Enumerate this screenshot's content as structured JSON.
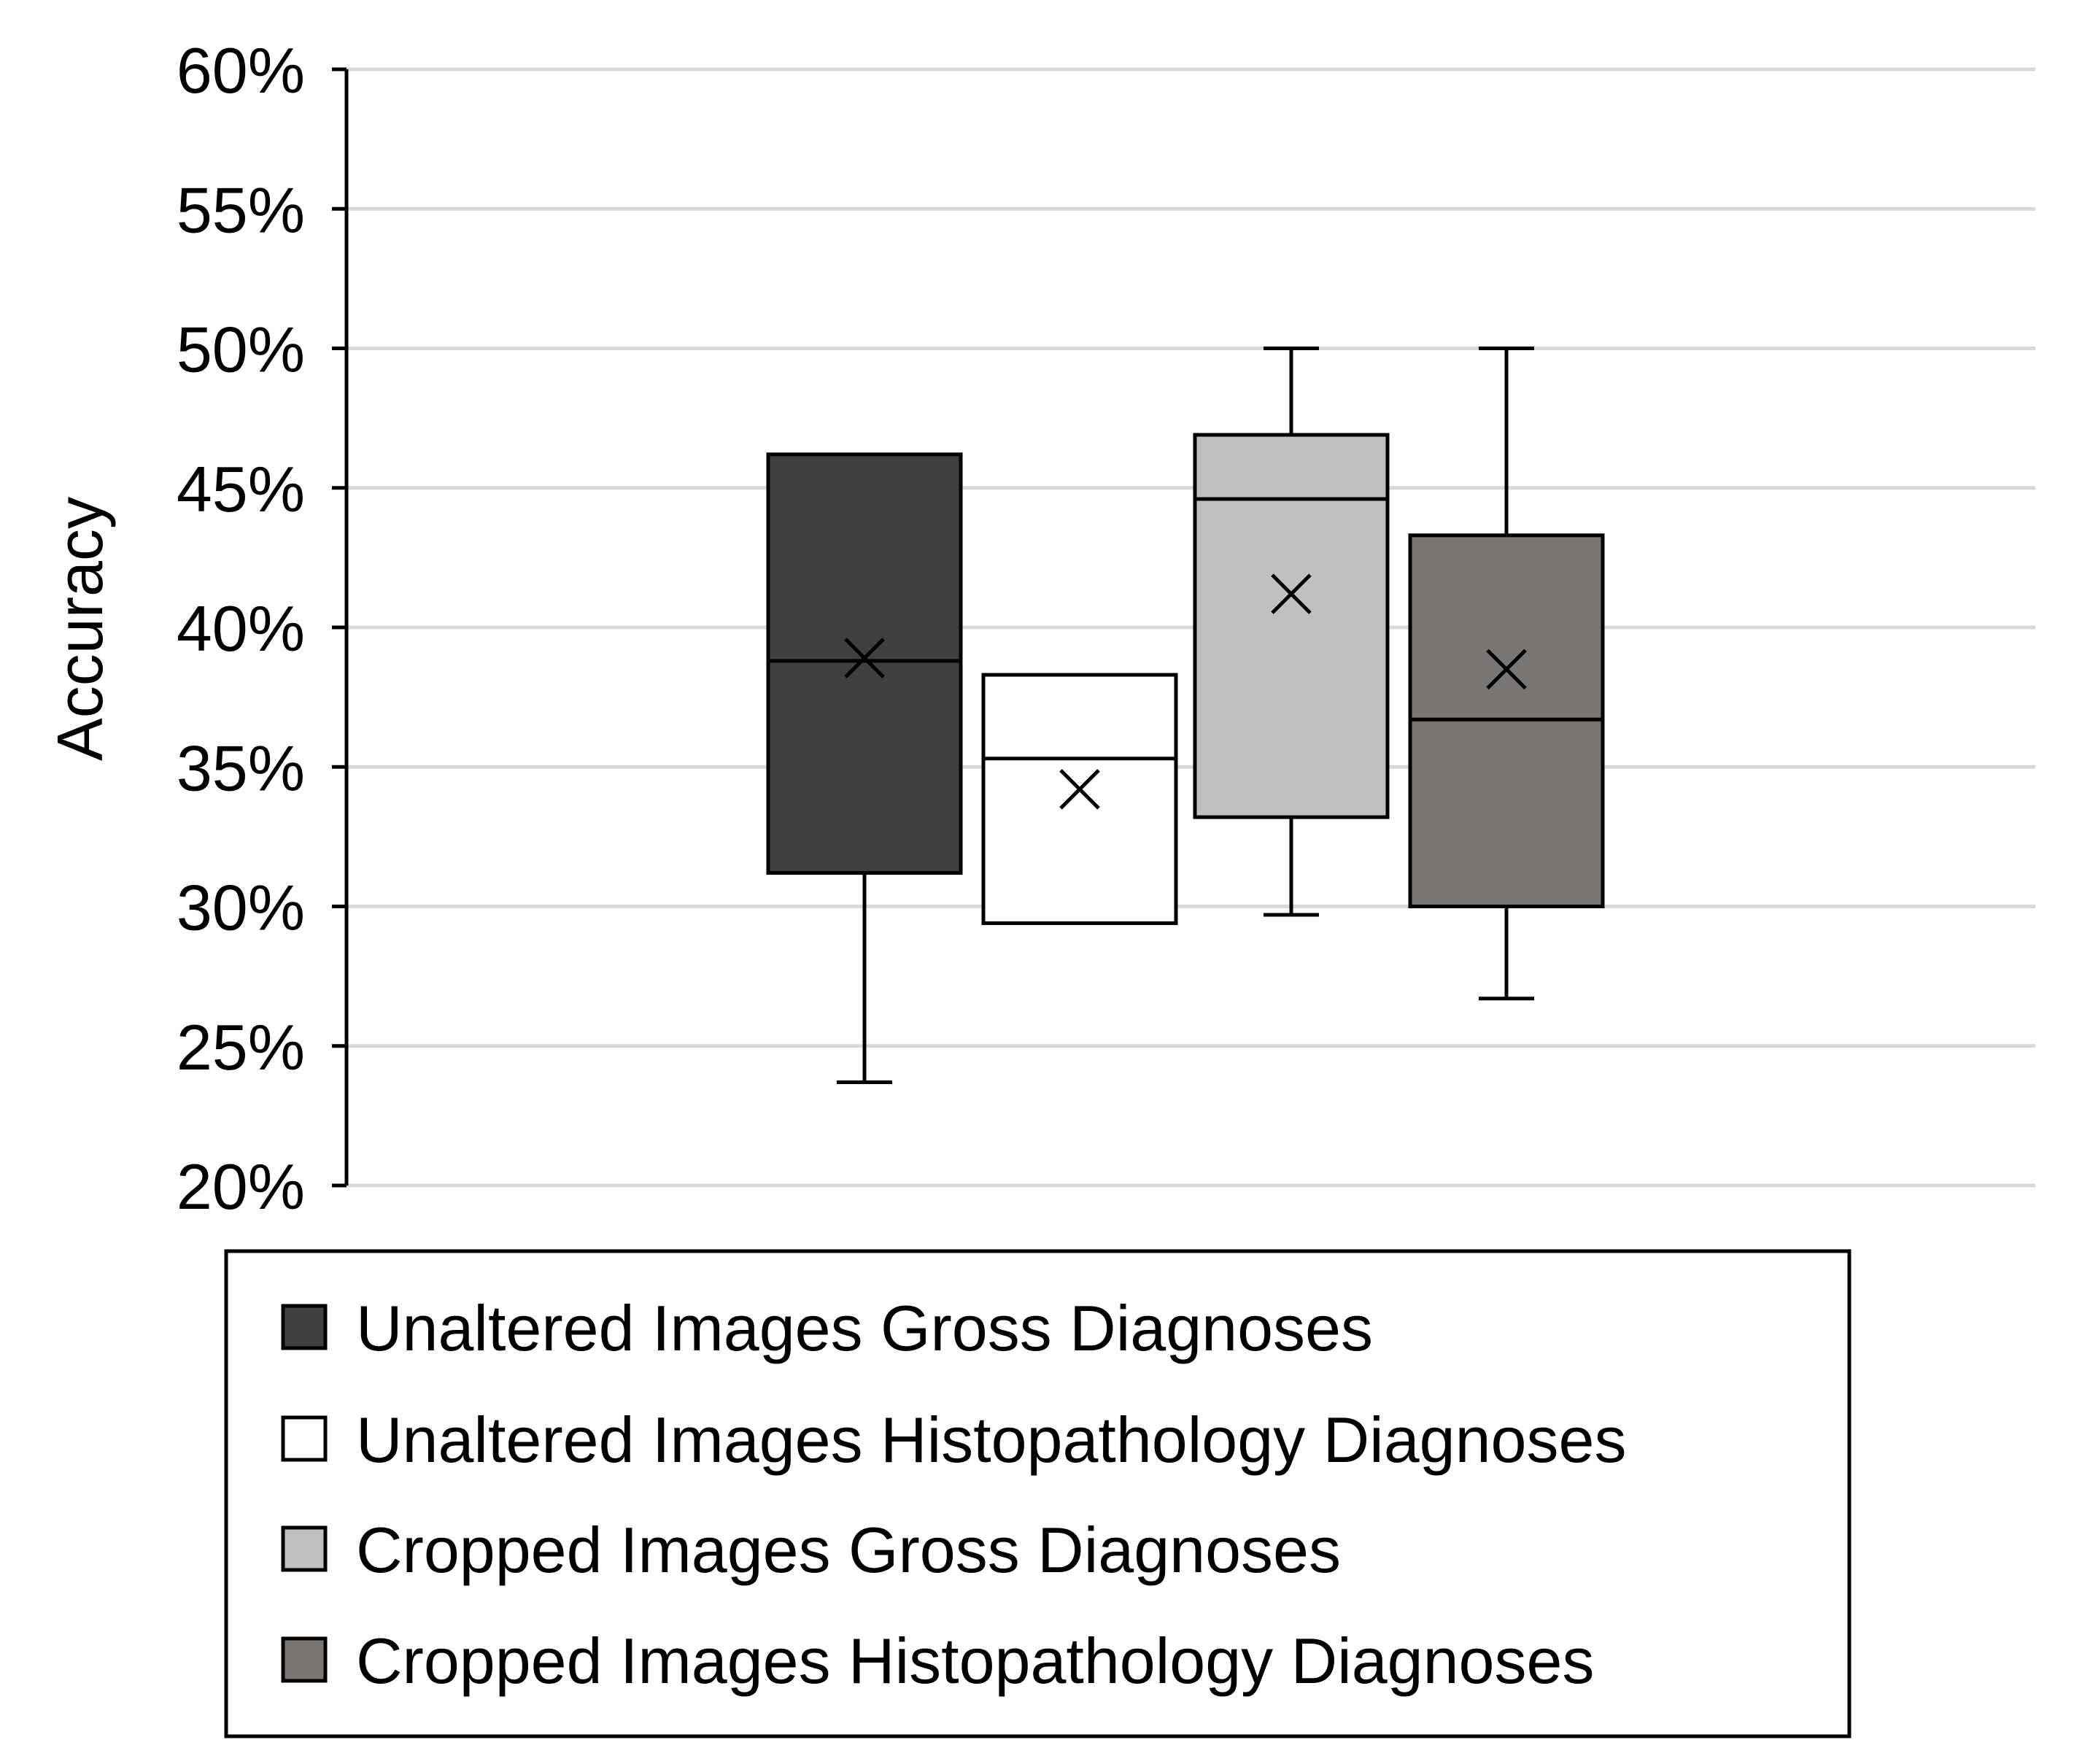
{
  "chart_data": {
    "type": "box",
    "title": "",
    "xlabel": "",
    "ylabel": "Accuracy",
    "ylim": [
      20,
      60
    ],
    "yticks": [
      20,
      25,
      30,
      35,
      40,
      45,
      50,
      55,
      60
    ],
    "ytick_labels": [
      "20%",
      "25%",
      "30%",
      "35%",
      "40%",
      "45%",
      "50%",
      "55%",
      "60%"
    ],
    "grid": true,
    "legend_position": "bottom",
    "series": [
      {
        "name": "Unaltered Images Gross Diagnoses",
        "color": "#404040",
        "whisker_low": 23.7,
        "q1": 31.2,
        "median": 38.8,
        "q3": 46.2,
        "whisker_high": 46.2,
        "mean": 38.9
      },
      {
        "name": "Unaltered Images Histopathology Diagnoses",
        "color": "#ffffff",
        "whisker_low": 29.4,
        "q1": 29.4,
        "median": 35.3,
        "q3": 38.3,
        "whisker_high": 38.3,
        "mean": 34.2
      },
      {
        "name": "Cropped Images Gross Diagnoses",
        "color": "#c0c0c0",
        "whisker_low": 29.7,
        "q1": 33.2,
        "median": 44.6,
        "q3": 46.9,
        "whisker_high": 50,
        "mean": 41.2
      },
      {
        "name": "Cropped Images Histopathology Diagnoses",
        "color": "#7a7573",
        "whisker_low": 26.7,
        "q1": 30,
        "median": 36.7,
        "q3": 43.3,
        "whisker_high": 50,
        "mean": 38.5
      }
    ]
  }
}
